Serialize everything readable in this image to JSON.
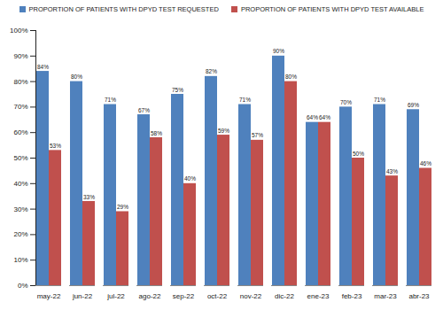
{
  "chart_data": {
    "type": "bar",
    "categories": [
      "may-22",
      "jun-22",
      "jul-22",
      "ago-22",
      "sep-22",
      "oct-22",
      "nov-22",
      "dic-22",
      "ene-23",
      "feb-23",
      "mar-23",
      "abr-23"
    ],
    "series": [
      {
        "name": "PROPORTION OF PATIENTS WITH DPYD TEST REQUESTED",
        "color": "#4f81bd",
        "values": [
          84,
          80,
          71,
          67,
          75,
          82,
          71,
          90,
          64,
          70,
          71,
          69
        ],
        "value_labels": [
          "84%",
          "80%",
          "71%",
          "67%",
          "75%",
          "82%",
          "71%",
          "90%",
          "64%",
          "70%",
          "71%",
          "69%"
        ]
      },
      {
        "name": "PROPORTION OF PATIENTS WITH DPYD TEST AVAILABLE",
        "color": "#c0504d",
        "values": [
          53,
          33,
          29,
          58,
          40,
          59,
          57,
          80,
          64,
          50,
          43,
          46
        ],
        "value_labels": [
          "53%",
          "33%",
          "29%",
          "58%",
          "40%",
          "59%",
          "57%",
          "80%",
          "64%",
          "50%",
          "43%",
          "46%"
        ]
      }
    ],
    "ylim": [
      0,
      100
    ],
    "yticks": [
      {
        "value": 0,
        "label": "0%"
      },
      {
        "value": 10,
        "label": "10%"
      },
      {
        "value": 20,
        "label": "20%"
      },
      {
        "value": 30,
        "label": "30%"
      },
      {
        "value": 40,
        "label": "40%"
      },
      {
        "value": 50,
        "label": "50%"
      },
      {
        "value": 60,
        "label": "60%"
      },
      {
        "value": 70,
        "label": "70%"
      },
      {
        "value": 80,
        "label": "80%"
      },
      {
        "value": 90,
        "label": "90%"
      },
      {
        "value": 100,
        "label": "100%"
      }
    ],
    "grid": false,
    "legend": "top",
    "data_labels": true
  }
}
